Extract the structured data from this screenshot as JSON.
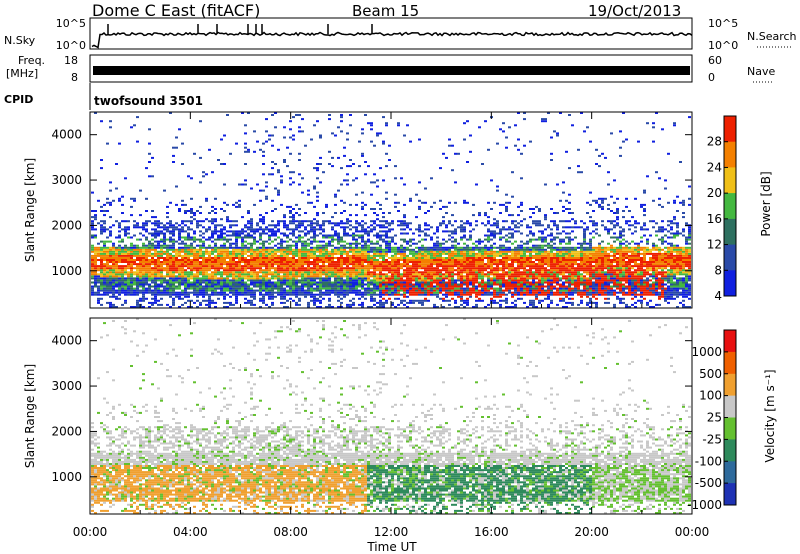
{
  "header": {
    "station": "Dome C East (fitACF)",
    "beam": "Beam 15",
    "date": "19/Oct/2013"
  },
  "strip_labels": {
    "nsky": "N.Sky",
    "nsky_ticks": [
      "10^5",
      "10^0"
    ],
    "nsearch": "N.Search",
    "nsearch_ticks": [
      "10^5",
      "10^0"
    ],
    "freq_line1": "Freq.",
    "freq_line2": "[MHz]",
    "freq_ticks": [
      "18",
      "8"
    ],
    "nave": "Nave",
    "nave_ticks": [
      "60",
      "0"
    ],
    "cpid": "CPID",
    "cpid_value": "twofsound  3501"
  },
  "x_axis": {
    "label": "Time UT",
    "ticks": [
      "00:00",
      "04:00",
      "08:00",
      "12:00",
      "16:00",
      "20:00",
      "00:00"
    ],
    "range_hours": [
      0,
      24
    ]
  },
  "chart_data": [
    {
      "type": "heatmap",
      "ylabel": "Slant Range [km]",
      "yticks": [
        1000,
        2000,
        3000,
        4000
      ],
      "ylim": [
        180,
        4500
      ],
      "colorbar": {
        "label": "Power [dB]",
        "ticks": [
          "28",
          "24",
          "20",
          "16",
          "12",
          "8",
          "4"
        ],
        "colors": [
          "#1020e0",
          "#2a4aa8",
          "#2e7060",
          "#44b840",
          "#f0c018",
          "#f48000",
          "#ee2000"
        ]
      },
      "bands": [
        {
          "from_km": 1000,
          "to_km": 1400,
          "level": "max"
        },
        {
          "from_km": 600,
          "to_km": 1000,
          "level": "high"
        },
        {
          "from_km": 1400,
          "to_km": 2100,
          "level": "low"
        },
        {
          "from_km": 2100,
          "to_km": 4500,
          "level": "sparse"
        }
      ]
    },
    {
      "type": "heatmap",
      "ylabel": "Slant Range [km]",
      "yticks": [
        1000,
        2000,
        3000,
        4000
      ],
      "ylim": [
        180,
        4500
      ],
      "colorbar": {
        "label": "Velocity [m s⁻¹]",
        "ticks": [
          "1000",
          "500",
          "100",
          "25",
          "-25",
          "-100",
          "-500",
          "-1000"
        ],
        "colors": [
          "#1e32b4",
          "#2e6a9c",
          "#2e8a5c",
          "#64c030",
          "#c8c8c8",
          "#f0a030",
          "#f06000",
          "#e81010"
        ]
      },
      "bands": [
        {
          "from_km": 1300,
          "to_km": 2100,
          "level": "gray"
        },
        {
          "from_km": 600,
          "to_km": 1100,
          "level": "orange (00-11 UT)"
        },
        {
          "from_km": 500,
          "to_km": 1300,
          "level": "green (11-20 UT)"
        }
      ]
    }
  ]
}
